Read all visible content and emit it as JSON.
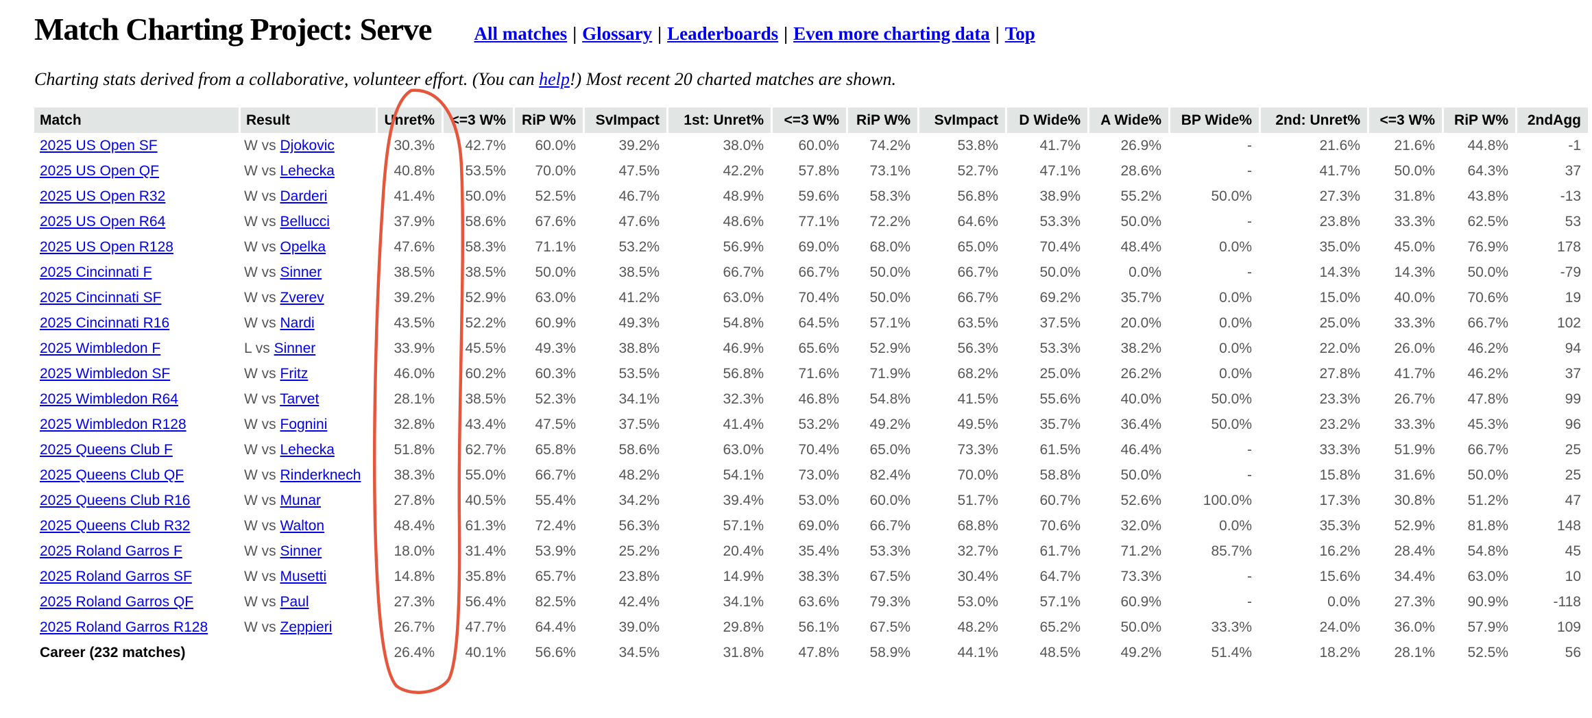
{
  "page": {
    "title": "Match Charting Project: Serve",
    "nav": {
      "separator": "|",
      "links": [
        {
          "label": "All matches"
        },
        {
          "label": "Glossary"
        },
        {
          "label": "Leaderboards"
        },
        {
          "label": "Even more charting data"
        },
        {
          "label": "Top"
        }
      ]
    },
    "subtitle": {
      "pre": "Charting stats derived from a collaborative, volunteer effort. (You can ",
      "link_label": "help",
      "post": "!) Most recent 20 charted matches are shown."
    }
  },
  "colors": {
    "link_blue": "#0000ee",
    "header_bg": "#e1e5e4",
    "value_text": "#565656",
    "annotation_red": "#e5573c"
  },
  "annotation": {
    "description": "hand-drawn red ellipse circling the Unret% column"
  },
  "table": {
    "columns": [
      {
        "label": "Match",
        "align": "left"
      },
      {
        "label": "Result",
        "align": "left"
      },
      {
        "label": "Unret%",
        "align": "right"
      },
      {
        "label": "<=3 W%",
        "align": "right"
      },
      {
        "label": "RiP W%",
        "align": "right"
      },
      {
        "label": "SvImpact",
        "align": "right"
      },
      {
        "label": "1st: Unret%",
        "align": "right"
      },
      {
        "label": "<=3 W%",
        "align": "right"
      },
      {
        "label": "RiP W%",
        "align": "right"
      },
      {
        "label": "SvImpact",
        "align": "right"
      },
      {
        "label": "D Wide%",
        "align": "right"
      },
      {
        "label": "A Wide%",
        "align": "right"
      },
      {
        "label": "BP Wide%",
        "align": "right"
      },
      {
        "label": "2nd: Unret%",
        "align": "right"
      },
      {
        "label": "<=3 W%",
        "align": "right"
      },
      {
        "label": "RiP W%",
        "align": "right"
      },
      {
        "label": "2ndAgg",
        "align": "right"
      }
    ],
    "rows": [
      {
        "match": "2025 US Open SF",
        "result_prefix": "W vs ",
        "opponent": "Djokovic",
        "career": false,
        "values": [
          "30.3%",
          "42.7%",
          "60.0%",
          "39.2%",
          "38.0%",
          "60.0%",
          "74.2%",
          "53.8%",
          "41.7%",
          "26.9%",
          "-",
          "21.6%",
          "21.6%",
          "44.8%",
          "-1"
        ]
      },
      {
        "match": "2025 US Open QF",
        "result_prefix": "W vs ",
        "opponent": "Lehecka",
        "career": false,
        "values": [
          "40.8%",
          "53.5%",
          "70.0%",
          "47.5%",
          "42.2%",
          "57.8%",
          "73.1%",
          "52.7%",
          "47.1%",
          "28.6%",
          "-",
          "41.7%",
          "50.0%",
          "64.3%",
          "37"
        ]
      },
      {
        "match": "2025 US Open R32",
        "result_prefix": "W vs ",
        "opponent": "Darderi",
        "career": false,
        "values": [
          "41.4%",
          "50.0%",
          "52.5%",
          "46.7%",
          "48.9%",
          "59.6%",
          "58.3%",
          "56.8%",
          "38.9%",
          "55.2%",
          "50.0%",
          "27.3%",
          "31.8%",
          "43.8%",
          "-13"
        ]
      },
      {
        "match": "2025 US Open R64",
        "result_prefix": "W vs ",
        "opponent": "Bellucci",
        "career": false,
        "values": [
          "37.9%",
          "58.6%",
          "67.6%",
          "47.6%",
          "48.6%",
          "77.1%",
          "72.2%",
          "64.6%",
          "53.3%",
          "50.0%",
          "-",
          "23.8%",
          "33.3%",
          "62.5%",
          "53"
        ]
      },
      {
        "match": "2025 US Open R128",
        "result_prefix": "W vs ",
        "opponent": "Opelka",
        "career": false,
        "values": [
          "47.6%",
          "58.3%",
          "71.1%",
          "53.2%",
          "56.9%",
          "69.0%",
          "68.0%",
          "65.0%",
          "70.4%",
          "48.4%",
          "0.0%",
          "35.0%",
          "45.0%",
          "76.9%",
          "178"
        ]
      },
      {
        "match": "2025 Cincinnati F",
        "result_prefix": "W vs ",
        "opponent": "Sinner",
        "career": false,
        "values": [
          "38.5%",
          "38.5%",
          "50.0%",
          "38.5%",
          "66.7%",
          "66.7%",
          "50.0%",
          "66.7%",
          "50.0%",
          "0.0%",
          "-",
          "14.3%",
          "14.3%",
          "50.0%",
          "-79"
        ]
      },
      {
        "match": "2025 Cincinnati SF",
        "result_prefix": "W vs ",
        "opponent": "Zverev",
        "career": false,
        "values": [
          "39.2%",
          "52.9%",
          "63.0%",
          "41.2%",
          "63.0%",
          "70.4%",
          "50.0%",
          "66.7%",
          "69.2%",
          "35.7%",
          "0.0%",
          "15.0%",
          "40.0%",
          "70.6%",
          "19"
        ]
      },
      {
        "match": "2025 Cincinnati R16",
        "result_prefix": "W vs ",
        "opponent": "Nardi",
        "career": false,
        "values": [
          "43.5%",
          "52.2%",
          "60.9%",
          "49.3%",
          "54.8%",
          "64.5%",
          "57.1%",
          "63.5%",
          "37.5%",
          "20.0%",
          "0.0%",
          "25.0%",
          "33.3%",
          "66.7%",
          "102"
        ]
      },
      {
        "match": "2025 Wimbledon F",
        "result_prefix": "L vs ",
        "opponent": "Sinner",
        "career": false,
        "values": [
          "33.9%",
          "45.5%",
          "49.3%",
          "38.8%",
          "46.9%",
          "65.6%",
          "52.9%",
          "56.3%",
          "53.3%",
          "38.2%",
          "0.0%",
          "22.0%",
          "26.0%",
          "46.2%",
          "94"
        ]
      },
      {
        "match": "2025 Wimbledon SF",
        "result_prefix": "W vs ",
        "opponent": "Fritz",
        "career": false,
        "values": [
          "46.0%",
          "60.2%",
          "60.3%",
          "53.5%",
          "56.8%",
          "71.6%",
          "71.9%",
          "68.2%",
          "25.0%",
          "26.2%",
          "0.0%",
          "27.8%",
          "41.7%",
          "46.2%",
          "37"
        ]
      },
      {
        "match": "2025 Wimbledon R64",
        "result_prefix": "W vs ",
        "opponent": "Tarvet",
        "career": false,
        "values": [
          "28.1%",
          "38.5%",
          "52.3%",
          "34.1%",
          "32.3%",
          "46.8%",
          "54.8%",
          "41.5%",
          "55.6%",
          "40.0%",
          "50.0%",
          "23.3%",
          "26.7%",
          "47.8%",
          "99"
        ]
      },
      {
        "match": "2025 Wimbledon R128",
        "result_prefix": "W vs ",
        "opponent": "Fognini",
        "career": false,
        "values": [
          "32.8%",
          "43.4%",
          "47.5%",
          "37.5%",
          "41.4%",
          "53.2%",
          "49.2%",
          "49.5%",
          "35.7%",
          "36.4%",
          "50.0%",
          "23.2%",
          "33.3%",
          "45.3%",
          "96"
        ]
      },
      {
        "match": "2025 Queens Club F",
        "result_prefix": "W vs ",
        "opponent": "Lehecka",
        "career": false,
        "values": [
          "51.8%",
          "62.7%",
          "65.8%",
          "58.6%",
          "63.0%",
          "70.4%",
          "65.0%",
          "73.3%",
          "61.5%",
          "46.4%",
          "-",
          "33.3%",
          "51.9%",
          "66.7%",
          "25"
        ]
      },
      {
        "match": "2025 Queens Club QF",
        "result_prefix": "W vs ",
        "opponent": "Rinderknech",
        "career": false,
        "values": [
          "38.3%",
          "55.0%",
          "66.7%",
          "48.2%",
          "54.1%",
          "73.0%",
          "82.4%",
          "70.0%",
          "58.8%",
          "50.0%",
          "-",
          "15.8%",
          "31.6%",
          "50.0%",
          "25"
        ]
      },
      {
        "match": "2025 Queens Club R16",
        "result_prefix": "W vs ",
        "opponent": "Munar",
        "career": false,
        "values": [
          "27.8%",
          "40.5%",
          "55.4%",
          "34.2%",
          "39.4%",
          "53.0%",
          "60.0%",
          "51.7%",
          "60.7%",
          "52.6%",
          "100.0%",
          "17.3%",
          "30.8%",
          "51.2%",
          "47"
        ]
      },
      {
        "match": "2025 Queens Club R32",
        "result_prefix": "W vs ",
        "opponent": "Walton",
        "career": false,
        "values": [
          "48.4%",
          "61.3%",
          "72.4%",
          "56.3%",
          "57.1%",
          "69.0%",
          "66.7%",
          "68.8%",
          "70.6%",
          "32.0%",
          "0.0%",
          "35.3%",
          "52.9%",
          "81.8%",
          "148"
        ]
      },
      {
        "match": "2025 Roland Garros F",
        "result_prefix": "W vs ",
        "opponent": "Sinner",
        "career": false,
        "values": [
          "18.0%",
          "31.4%",
          "53.9%",
          "25.2%",
          "20.4%",
          "35.4%",
          "53.3%",
          "32.7%",
          "61.7%",
          "71.2%",
          "85.7%",
          "16.2%",
          "28.4%",
          "54.8%",
          "45"
        ]
      },
      {
        "match": "2025 Roland Garros SF",
        "result_prefix": "W vs ",
        "opponent": "Musetti",
        "career": false,
        "values": [
          "14.8%",
          "35.8%",
          "65.7%",
          "23.8%",
          "14.9%",
          "38.3%",
          "67.5%",
          "30.4%",
          "64.7%",
          "73.3%",
          "-",
          "15.6%",
          "34.4%",
          "63.0%",
          "10"
        ]
      },
      {
        "match": "2025 Roland Garros QF",
        "result_prefix": "W vs ",
        "opponent": "Paul",
        "career": false,
        "values": [
          "27.3%",
          "56.4%",
          "82.5%",
          "42.4%",
          "34.1%",
          "63.6%",
          "79.3%",
          "53.0%",
          "57.1%",
          "60.9%",
          "-",
          "0.0%",
          "27.3%",
          "90.9%",
          "-118"
        ]
      },
      {
        "match": "2025 Roland Garros R128",
        "result_prefix": "W vs ",
        "opponent": "Zeppieri",
        "career": false,
        "values": [
          "26.7%",
          "47.7%",
          "64.4%",
          "39.0%",
          "29.8%",
          "56.1%",
          "67.5%",
          "48.2%",
          "65.2%",
          "50.0%",
          "33.3%",
          "24.0%",
          "36.0%",
          "57.9%",
          "109"
        ]
      },
      {
        "match": "Career (232 matches)",
        "result_prefix": "",
        "opponent": "",
        "career": true,
        "values": [
          "26.4%",
          "40.1%",
          "56.6%",
          "34.5%",
          "31.8%",
          "47.8%",
          "58.9%",
          "44.1%",
          "48.5%",
          "49.2%",
          "51.4%",
          "18.2%",
          "28.1%",
          "52.5%",
          "56"
        ]
      }
    ]
  }
}
